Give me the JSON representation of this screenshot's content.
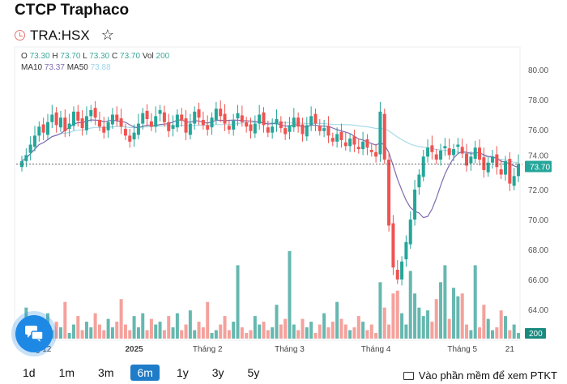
{
  "header": {
    "title": "CTCP Traphaco",
    "symbol": "TRA:HSX",
    "icons": [
      "clock-icon",
      "star-icon"
    ]
  },
  "legend": {
    "o_label": "O",
    "o": "73.30",
    "h_label": "H",
    "h": "73.70",
    "l_label": "L",
    "l": "73.30",
    "c_label": "C",
    "c": "73.70",
    "vol_label": "Vol",
    "vol": "200",
    "ma10_label": "MA10",
    "ma10": "73.37",
    "ma50_label": "MA50",
    "ma50": "73.88"
  },
  "ranges": [
    {
      "label": "1d"
    },
    {
      "label": "1m"
    },
    {
      "label": "3m"
    },
    {
      "label": "6m",
      "active": true
    },
    {
      "label": "1y"
    },
    {
      "label": "3y"
    },
    {
      "label": "5y"
    }
  ],
  "ptkt_label": "Vào phần mềm để xem PTKT",
  "colors": {
    "up": "#26a69a",
    "down": "#ef5350",
    "vol_up": "#66b8b0",
    "vol_down": "#f5a19c",
    "ma10": "#7e6bb0",
    "ma50": "#a9dbe9",
    "chat": "#1e88e5"
  },
  "chart_data": {
    "type": "candlestick",
    "price_ticks": [
      "80.00",
      "78.00",
      "76.00",
      "74.00",
      "72.00",
      "70.00",
      "68.00",
      "66.00",
      "64.00"
    ],
    "ylim": [
      64,
      80
    ],
    "x_ticks": [
      {
        "label": "g 12",
        "index": 5
      },
      {
        "label": "2025",
        "index": 26,
        "bold": true
      },
      {
        "label": "Tháng 2",
        "index": 43
      },
      {
        "label": "Tháng 3",
        "index": 62
      },
      {
        "label": "Tháng 4",
        "index": 82
      },
      {
        "label": "Tháng 5",
        "index": 102
      },
      {
        "label": "21",
        "index": 113
      }
    ],
    "last_price": "73.70",
    "last_volume": "200",
    "close": [
      73.9,
      74.3,
      75.0,
      75.6,
      76.2,
      75.8,
      76.5,
      77.0,
      76.3,
      76.8,
      75.9,
      76.4,
      77.2,
      76.6,
      76.1,
      76.9,
      77.3,
      76.8,
      76.2,
      75.8,
      76.5,
      77.0,
      76.6,
      76.2,
      75.6,
      75.2,
      75.8,
      76.4,
      77.1,
      76.7,
      76.2,
      76.9,
      77.3,
      76.5,
      75.9,
      76.3,
      77.0,
      76.6,
      75.8,
      76.4,
      77.2,
      76.8,
      76.3,
      76.0,
      76.8,
      77.4,
      76.9,
      76.4,
      76.0,
      76.6,
      77.1,
      76.5,
      76.2,
      75.9,
      76.4,
      77.0,
      76.3,
      75.8,
      76.2,
      76.7,
      76.1,
      75.7,
      76.3,
      76.8,
      76.2,
      75.7,
      76.3,
      76.9,
      76.4,
      75.9,
      76.1,
      75.6,
      75.2,
      75.7,
      75.3,
      74.9,
      75.4,
      75.0,
      74.7,
      75.2,
      74.8,
      74.5,
      74.2,
      77.2,
      74.0,
      69.6,
      66.8,
      66.0,
      67.2,
      68.5,
      70.0,
      72.0,
      73.0,
      74.2,
      74.8,
      74.5,
      74.0,
      74.6,
      74.9,
      74.3,
      74.7,
      75.0,
      74.4,
      73.6,
      74.2,
      74.8,
      74.0,
      73.3,
      73.8,
      74.2,
      73.5,
      73.0,
      73.9,
      72.4,
      72.9,
      73.7
    ],
    "volume": [
      600,
      1100,
      400,
      300,
      700,
      500,
      900,
      300,
      600,
      400,
      1300,
      200,
      500,
      800,
      300,
      600,
      400,
      900,
      500,
      300,
      700,
      400,
      600,
      1400,
      500,
      300,
      800,
      400,
      900,
      300,
      700,
      500,
      600,
      300,
      800,
      400,
      900,
      300,
      500,
      1000,
      300,
      600,
      400,
      1300,
      200,
      300,
      500,
      800,
      300,
      600,
      2600,
      400,
      200,
      300,
      800,
      500,
      600,
      300,
      400,
      1200,
      500,
      700,
      3100,
      500,
      300,
      700,
      400,
      600,
      200,
      500,
      900,
      400,
      600,
      1300,
      700,
      500,
      300,
      400,
      800,
      600,
      300,
      500,
      200,
      2000,
      1100,
      500,
      1600,
      1700,
      900,
      500,
      2400,
      1600,
      1100,
      800,
      1000,
      600,
      1400,
      2000,
      2600,
      700,
      1800,
      1500,
      1600,
      500,
      300,
      2600,
      400,
      1200,
      700,
      300,
      400,
      1000,
      800,
      300,
      500,
      200
    ]
  }
}
